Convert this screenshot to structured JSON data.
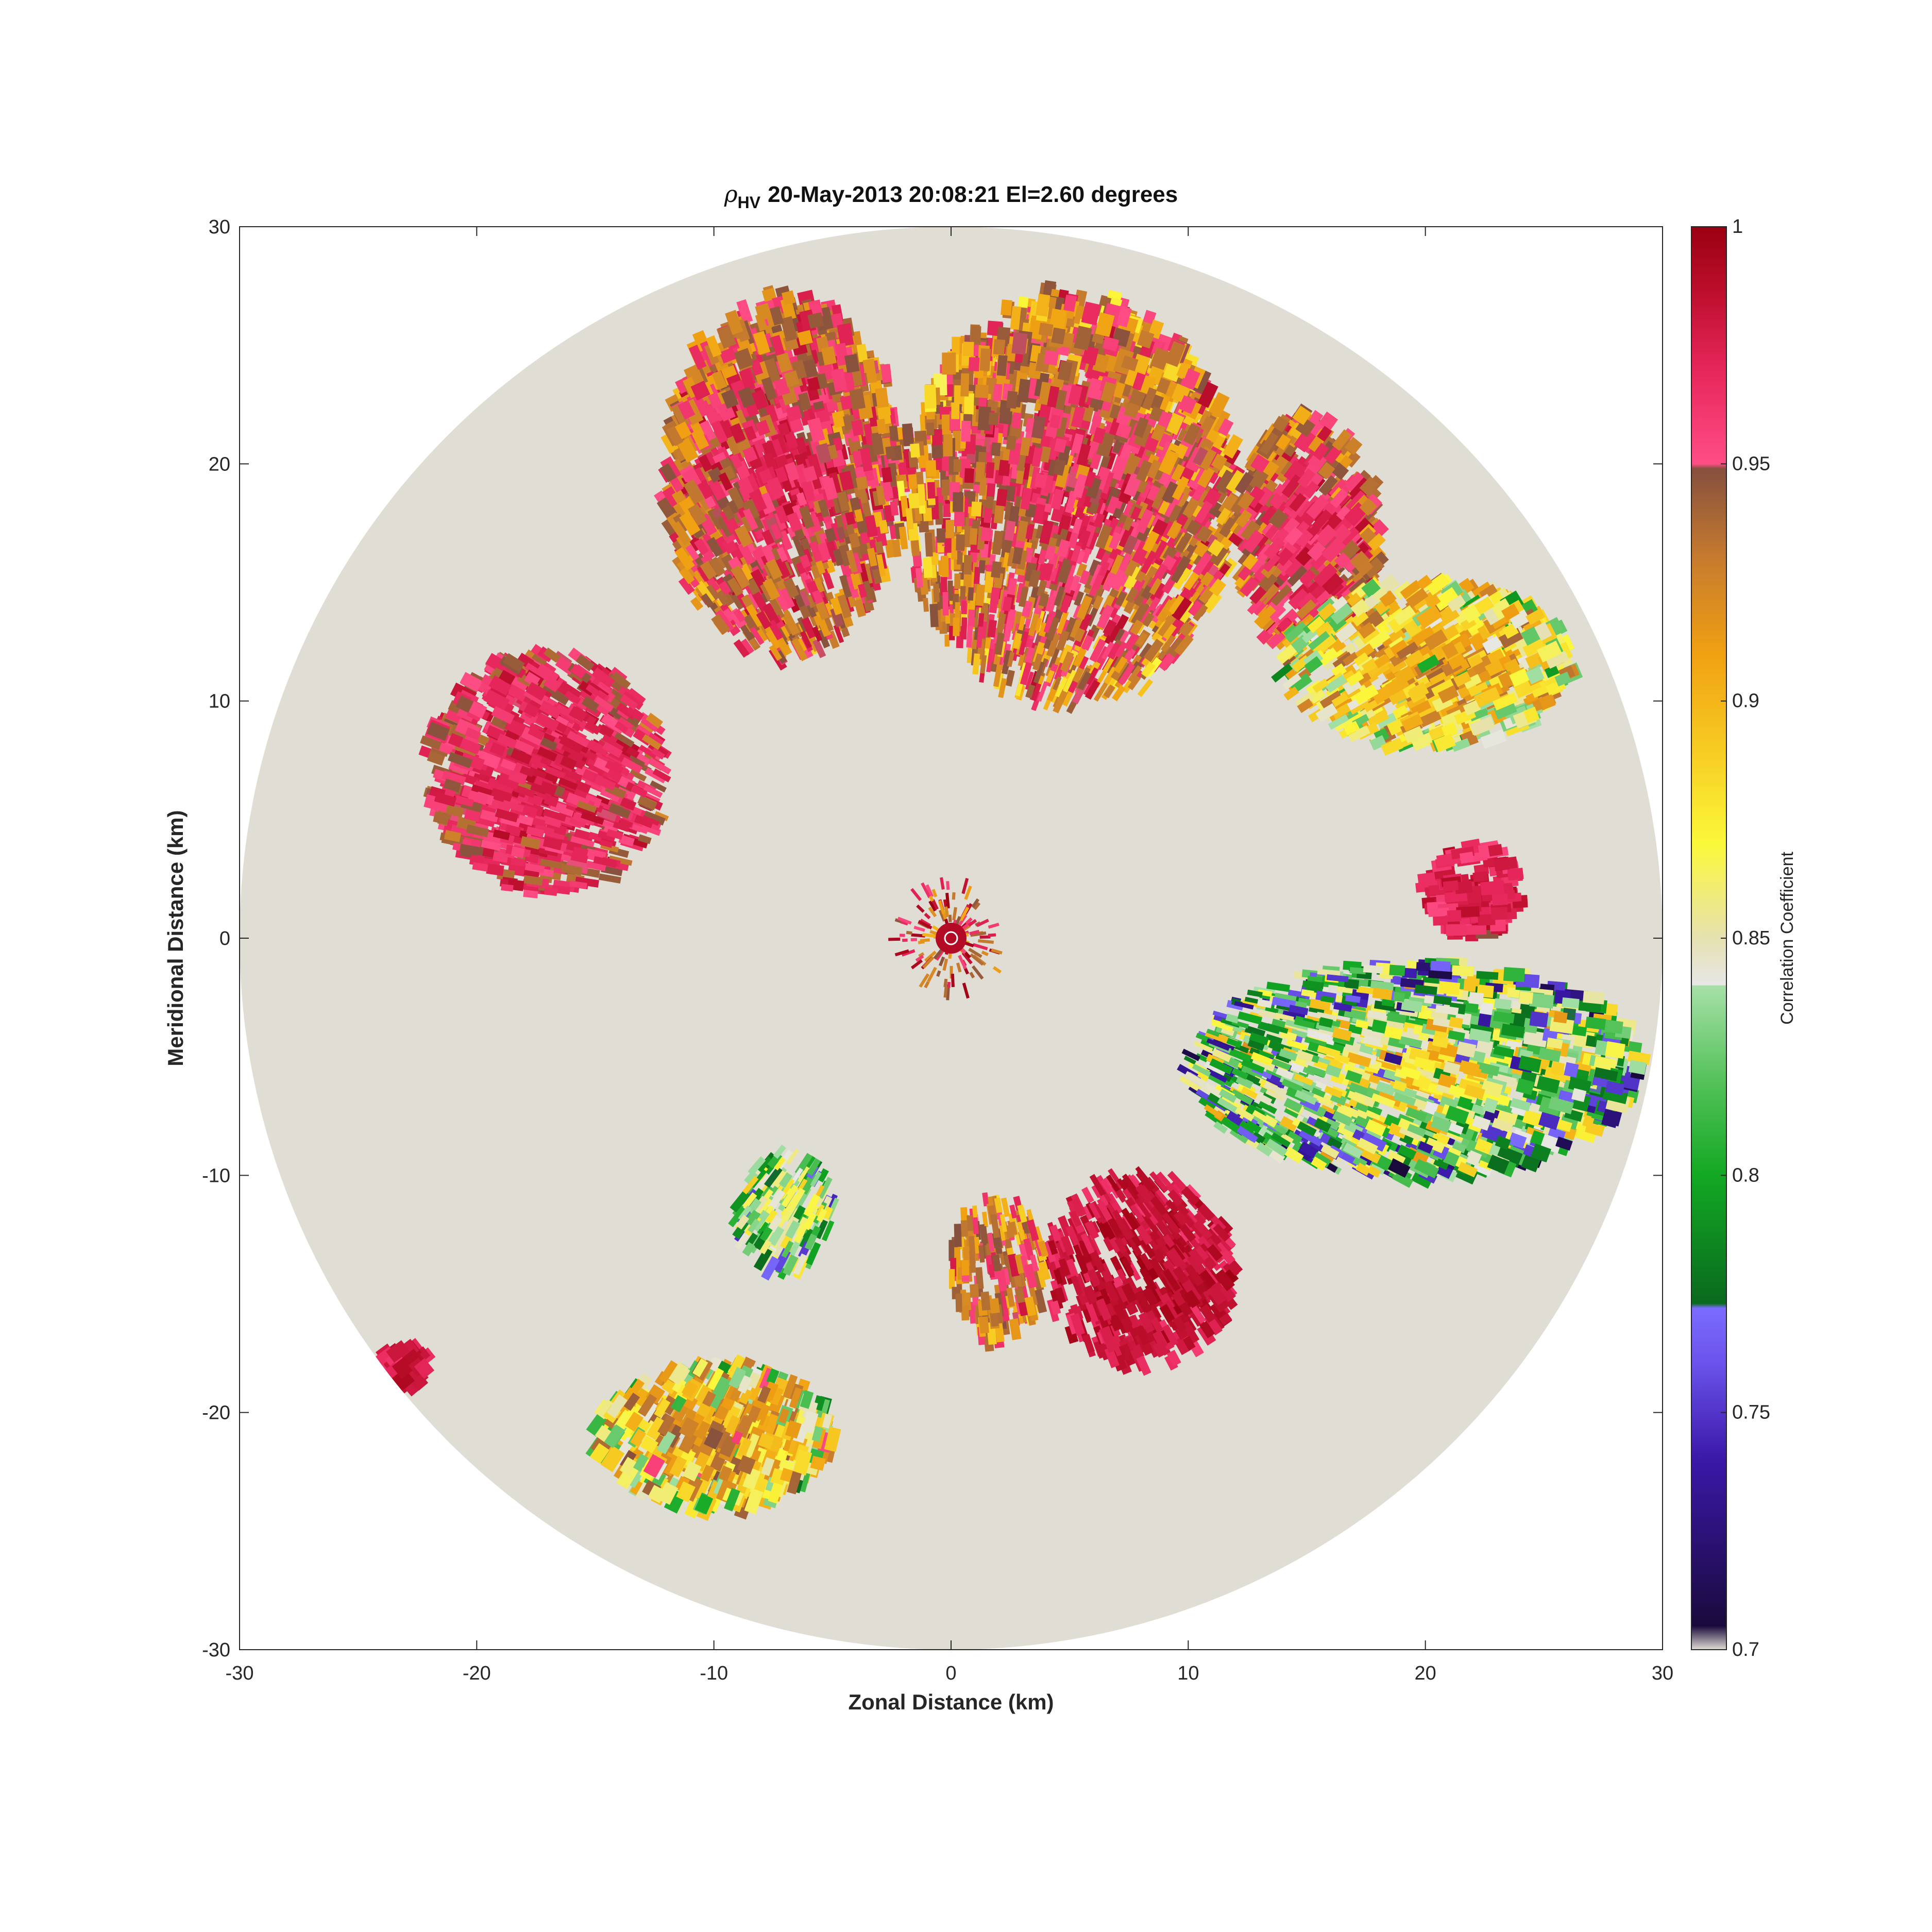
{
  "chart_data": {
    "type": "heatmap",
    "subtype": "radar-ppi",
    "title": {
      "symbol": "ρ",
      "subscript": "HV",
      "text": "20-May-2013 20:08:21 El=2.60 degrees"
    },
    "xlabel": "Zonal Distance (km)",
    "ylabel": "Meridional Distance (km)",
    "xlim": [
      -30,
      30
    ],
    "ylim": [
      -30,
      30
    ],
    "xticks": [
      "-30",
      "-20",
      "-10",
      "0",
      "10",
      "20",
      "30"
    ],
    "yticks": [
      "-30",
      "-20",
      "-10",
      "0",
      "10",
      "20",
      "30"
    ],
    "max_range_km": 30,
    "background_color": "#e0ddd4",
    "colorbar": {
      "label": "Correlation Coefficient",
      "range": [
        0.7,
        1.0
      ],
      "ticks": [
        "0.7",
        "0.75",
        "0.8",
        "0.85",
        "0.9",
        "0.95",
        "1"
      ],
      "stops": [
        {
          "v": 0.7,
          "color": "#e0ddd4"
        },
        {
          "v": 0.705,
          "color": "#1a0a3c"
        },
        {
          "v": 0.74,
          "color": "#3a18a8"
        },
        {
          "v": 0.76,
          "color": "#6a52ea"
        },
        {
          "v": 0.772,
          "color": "#7b6cff"
        },
        {
          "v": 0.773,
          "color": "#0a6a1e"
        },
        {
          "v": 0.8,
          "color": "#13a823"
        },
        {
          "v": 0.82,
          "color": "#55c25a"
        },
        {
          "v": 0.84,
          "color": "#a6e0a8"
        },
        {
          "v": 0.8401,
          "color": "#e7e7e7"
        },
        {
          "v": 0.85,
          "color": "#e6e1b0"
        },
        {
          "v": 0.87,
          "color": "#fbf83a"
        },
        {
          "v": 0.89,
          "color": "#f7cb22"
        },
        {
          "v": 0.91,
          "color": "#f0a012"
        },
        {
          "v": 0.93,
          "color": "#c77b2e"
        },
        {
          "v": 0.949,
          "color": "#86503e"
        },
        {
          "v": 0.95,
          "color": "#ff4d86"
        },
        {
          "v": 0.97,
          "color": "#e6265a"
        },
        {
          "v": 0.985,
          "color": "#c01030"
        },
        {
          "v": 1.0,
          "color": "#9a0010"
        }
      ]
    },
    "echo_regions": [
      {
        "x": [
          -22,
          -12
        ],
        "y": [
          2,
          12
        ],
        "rho": [
          0.93,
          0.99
        ]
      },
      {
        "x": [
          -12,
          -2
        ],
        "y": [
          12,
          27
        ],
        "rho": [
          0.9,
          0.99
        ]
      },
      {
        "x": [
          -2,
          12
        ],
        "y": [
          10,
          27
        ],
        "rho": [
          0.88,
          0.99
        ]
      },
      {
        "x": [
          12,
          18
        ],
        "y": [
          12,
          22
        ],
        "rho": [
          0.9,
          0.99
        ]
      },
      {
        "x": [
          14,
          26
        ],
        "y": [
          8,
          15
        ],
        "rho": [
          0.8,
          0.95
        ]
      },
      {
        "x": [
          20,
          24
        ],
        "y": [
          0,
          4
        ],
        "rho": [
          0.95,
          0.99
        ]
      },
      {
        "x": [
          10,
          29
        ],
        "y": [
          -10,
          -1
        ],
        "rho": [
          0.72,
          0.92
        ]
      },
      {
        "x": [
          4,
          12
        ],
        "y": [
          -18,
          -10
        ],
        "rho": [
          0.96,
          1.0
        ]
      },
      {
        "x": [
          0,
          4
        ],
        "y": [
          -17,
          -11
        ],
        "rho": [
          0.88,
          0.98
        ]
      },
      {
        "x": [
          -9,
          -5
        ],
        "y": [
          -14,
          -9
        ],
        "rho": [
          0.75,
          0.9
        ]
      },
      {
        "x": [
          -15,
          -5
        ],
        "y": [
          -24,
          -18
        ],
        "rho": [
          0.8,
          0.96
        ]
      },
      {
        "x": [
          -24,
          -22
        ],
        "y": [
          -19,
          -17
        ],
        "rho": [
          0.95,
          1.0
        ]
      }
    ]
  }
}
